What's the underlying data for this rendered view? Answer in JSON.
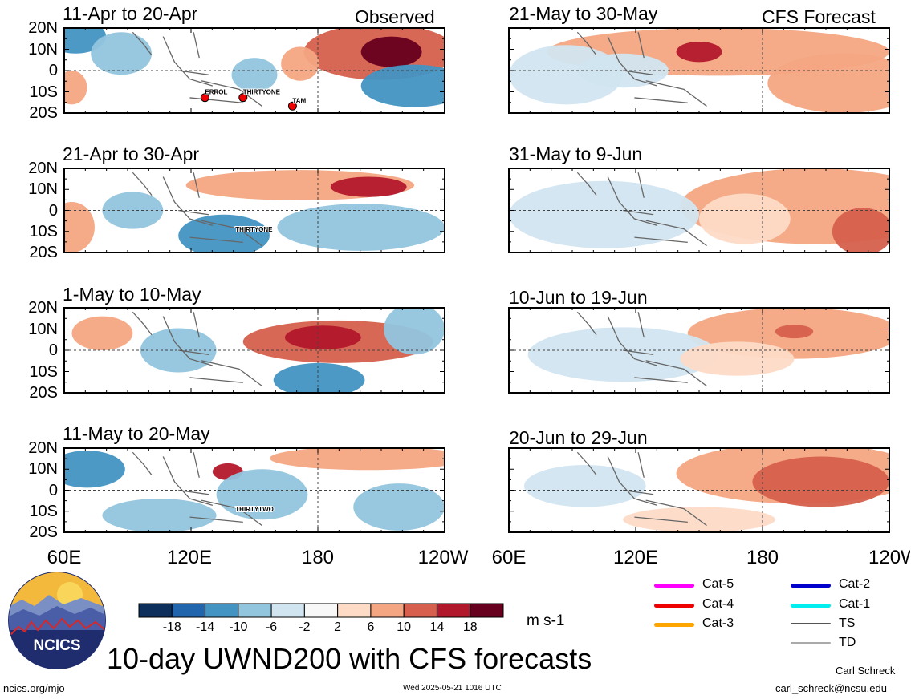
{
  "panels": [
    {
      "title": "11-Apr to 20-Apr",
      "source": "Observed",
      "storms": [
        {
          "name": "ERROL"
        },
        {
          "name": "THIRTYONE"
        },
        {
          "name": "TAM"
        }
      ]
    },
    {
      "title": "21-Apr to 30-Apr",
      "source": "",
      "storms": [
        {
          "name": "THIRTYONE"
        }
      ]
    },
    {
      "title": "1-May to 10-May",
      "source": "",
      "storms": []
    },
    {
      "title": "11-May to 20-May",
      "source": "",
      "storms": [
        {
          "name": "THIRTYTWO"
        }
      ]
    },
    {
      "title": "21-May to 30-May",
      "source": "CFS Forecast",
      "storms": []
    },
    {
      "title": "31-May to 9-Jun",
      "source": "",
      "storms": []
    },
    {
      "title": "10-Jun to 19-Jun",
      "source": "",
      "storms": []
    },
    {
      "title": "20-Jun to 29-Jun",
      "source": "",
      "storms": []
    }
  ],
  "lat_labels": [
    "20N",
    "10N",
    "0",
    "10S",
    "20S"
  ],
  "lon_labels": [
    "60E",
    "120E",
    "180",
    "120W"
  ],
  "colorbar": {
    "labels": [
      "-18",
      "-14",
      "-10",
      "-6",
      "-2",
      "2",
      "6",
      "10",
      "14",
      "18"
    ],
    "colors": [
      "#0d2f5c",
      "#2166ac",
      "#4393c3",
      "#92c5de",
      "#d1e5f0",
      "#f7f7f7",
      "#fddbc7",
      "#f4a582",
      "#d6604d",
      "#b2182b",
      "#67001f"
    ],
    "units": "m s-1"
  },
  "legend": {
    "items": [
      {
        "label": "Cat-5",
        "color": "#ff00ff"
      },
      {
        "label": "Cat-4",
        "color": "#ee0000"
      },
      {
        "label": "Cat-3",
        "color": "#ffa500"
      },
      {
        "label": "Cat-2",
        "color": "#0000cc"
      },
      {
        "label": "Cat-1",
        "color": "#00eeee"
      },
      {
        "label": "TS",
        "color": "#555555"
      },
      {
        "label": "TD",
        "color": "#aaaaaa"
      }
    ]
  },
  "logo_text": "NCICS",
  "main_title": "10-day UWND200 with CFS forecasts",
  "footer": {
    "left": "ncics.org/mjo",
    "center": "Wed 2025-05-21 1016 UTC",
    "author": "Carl Schreck",
    "email": "carl_schreck@ncsu.edu"
  },
  "chart_data": {
    "type": "heatmap",
    "title": "10-day UWND200 with CFS forecasts",
    "variable": "200-hPa zonal wind",
    "units": "m s-1",
    "x_axis": {
      "range": [
        "60E",
        "120W"
      ],
      "ticks": [
        "60E",
        "120E",
        "180",
        "120W"
      ]
    },
    "y_axis": {
      "range": [
        "20S",
        "20N"
      ],
      "ticks": [
        "20N",
        "10N",
        "0",
        "10S",
        "20S"
      ]
    },
    "contour_levels": [
      -18,
      -14,
      -10,
      -6,
      -2,
      2,
      6,
      10,
      14,
      18
    ],
    "panels": [
      {
        "period": "11-Apr to 20-Apr",
        "kind": "Observed",
        "storms": [
          "ERROL",
          "THIRTYONE",
          "TAM"
        ]
      },
      {
        "period": "21-Apr to 30-Apr",
        "kind": "Observed",
        "storms": [
          "THIRTYONE"
        ]
      },
      {
        "period": "1-May to 10-May",
        "kind": "Observed",
        "storms": []
      },
      {
        "period": "11-May to 20-May",
        "kind": "Observed",
        "storms": [
          "THIRTYTWO"
        ]
      },
      {
        "period": "21-May to 30-May",
        "kind": "CFS Forecast",
        "storms": []
      },
      {
        "period": "31-May to 9-Jun",
        "kind": "CFS Forecast",
        "storms": []
      },
      {
        "period": "10-Jun to 19-Jun",
        "kind": "CFS Forecast",
        "storms": []
      },
      {
        "period": "20-Jun to 29-Jun",
        "kind": "CFS Forecast",
        "storms": []
      }
    ]
  }
}
